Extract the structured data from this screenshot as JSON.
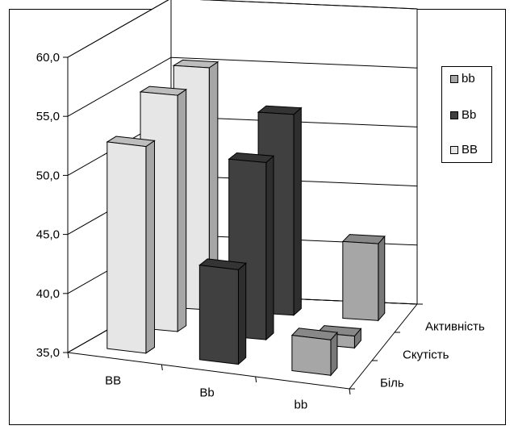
{
  "chart_data": {
    "type": "bar",
    "subtype": "3d-clustered-column",
    "categories": [
      "BB",
      "Bb",
      "bb"
    ],
    "depth_labels": [
      "Активність",
      "Скутість",
      "Біль"
    ],
    "series": [
      {
        "name": "BB",
        "color": "#e6e6e6",
        "values": {
          "Активність": 55.5,
          "Скутість": 55.0,
          "Біль": 52.5
        }
      },
      {
        "name": "Bb",
        "color": "#404040",
        "values": {
          "Активність": 52.0,
          "Скутість": 50.0,
          "Біль": 43.0
        }
      },
      {
        "name": "bb",
        "color": "#a6a6a6",
        "values": {
          "Активність": 41.5,
          "Скутість": 36.0,
          "Біль": 38.0
        }
      }
    ],
    "legend": {
      "placement": "right",
      "entries": [
        "bb",
        "Bb",
        "BB"
      ]
    },
    "y_ticks": [
      "35,0",
      "40,0",
      "45,0",
      "50,0",
      "55,0",
      "60,0"
    ],
    "ylim": [
      35,
      60
    ],
    "grid": true,
    "title": "",
    "xlabel": "",
    "ylabel": ""
  }
}
